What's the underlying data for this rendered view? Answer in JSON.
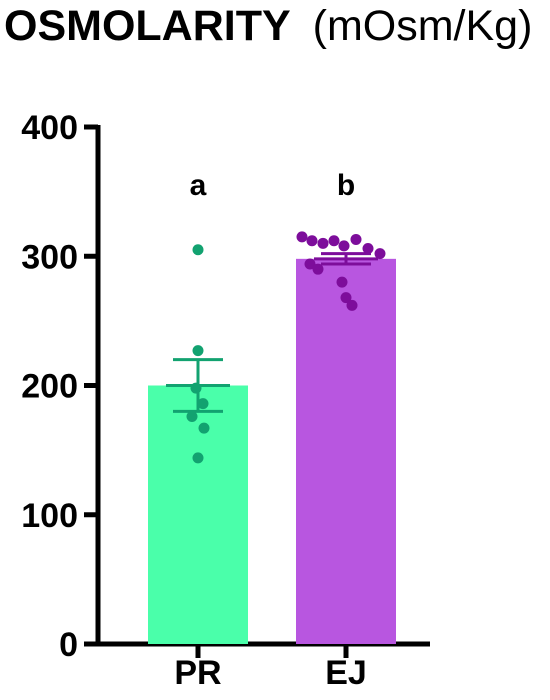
{
  "chart_data": {
    "type": "bar",
    "title": "OSMOLARITY",
    "title_unit": "(mOsm/Kg)",
    "xlabel": "",
    "ylabel": "",
    "categories": [
      "PR",
      "EJ"
    ],
    "values": [
      200,
      298
    ],
    "error": [
      20,
      4
    ],
    "significance": [
      "a",
      "b"
    ],
    "colors": {
      "bar": [
        "#4affaa",
        "#b856e0"
      ],
      "points": [
        "#12a270",
        "#7d0d9b"
      ]
    },
    "points": [
      [
        305,
        227,
        198,
        186,
        176,
        167,
        144
      ],
      [
        315,
        312,
        310,
        312,
        308,
        313,
        306,
        302,
        294,
        290,
        280,
        268,
        262
      ]
    ],
    "yticks": [
      0,
      100,
      200,
      300,
      400
    ],
    "ylim": [
      0,
      400
    ],
    "grid": false,
    "legend": "none"
  }
}
